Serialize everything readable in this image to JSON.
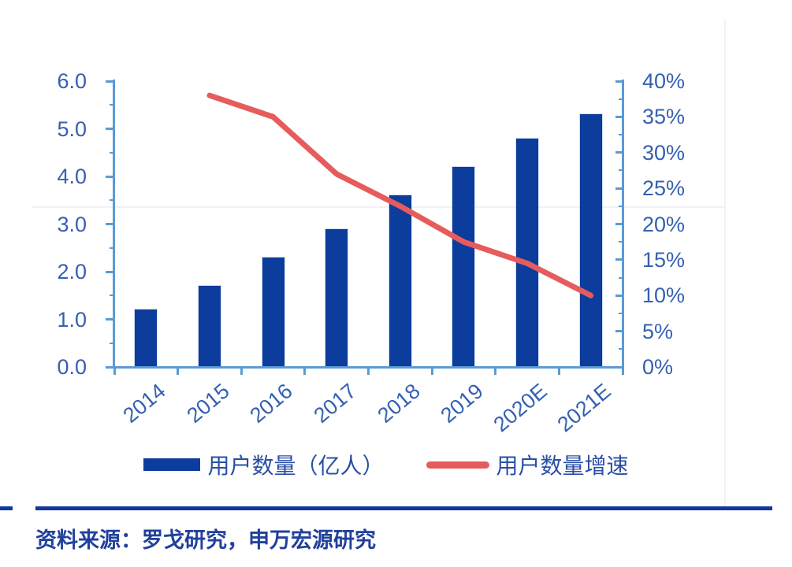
{
  "chart_data": {
    "type": "bar",
    "categories": [
      "2014",
      "2015",
      "2016",
      "2017",
      "2018",
      "2019",
      "2020E",
      "2021E"
    ],
    "series": [
      {
        "name": "用户数量（亿人）",
        "type": "bar",
        "axis": "left",
        "color": "#0c3c9c",
        "values": [
          1.2,
          1.7,
          2.3,
          2.9,
          3.6,
          4.2,
          4.8,
          5.3
        ]
      },
      {
        "name": "用户数量增速",
        "type": "line",
        "axis": "right",
        "color": "#e65c5c",
        "values": [
          null,
          38,
          35,
          27,
          22.5,
          17.5,
          14.5,
          10
        ]
      }
    ],
    "left_axis": {
      "min": 0,
      "max": 6,
      "step": 1,
      "tick_labels": [
        "6.0",
        "5.0",
        "4.0",
        "3.0",
        "2.0",
        "1.0",
        "0.0"
      ]
    },
    "right_axis": {
      "min": 0,
      "max": 40,
      "step": 5,
      "tick_labels": [
        "40%",
        "35%",
        "30%",
        "25%",
        "20%",
        "15%",
        "10%",
        "5%",
        "0%"
      ]
    },
    "grid": false,
    "legend_position": "bottom",
    "title": "",
    "xlabel": "",
    "ylabel": ""
  },
  "legend": {
    "bar_label": "用户数量（亿人）",
    "line_label": "用户数量增速"
  },
  "footer": {
    "source_text": "资料来源：罗戈研究，申万宏源研究"
  },
  "colors": {
    "bar": "#0c3c9c",
    "line": "#e65c5c",
    "axis": "#5b9bd5",
    "tick_label": "#3560b2",
    "legend_text": "#2b4fa6",
    "source_text": "#21409c",
    "rule": "#12389e"
  }
}
